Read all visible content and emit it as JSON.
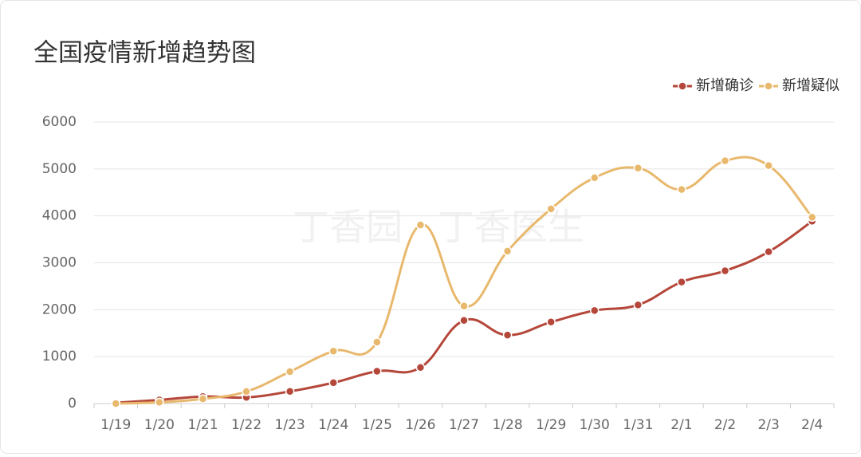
{
  "chart_data": {
    "type": "line",
    "title": "全国疫情新增趋势图",
    "watermark": "丁香园 · 丁香医生",
    "categories": [
      "1/19",
      "1/20",
      "1/21",
      "1/22",
      "1/23",
      "1/24",
      "1/25",
      "1/26",
      "1/27",
      "1/28",
      "1/29",
      "1/30",
      "1/31",
      "2/1",
      "2/2",
      "2/3",
      "2/4"
    ],
    "series": [
      {
        "name": "新增确诊",
        "color": "#b5473a",
        "values": [
          17,
          77,
          149,
          131,
          259,
          444,
          688,
          769,
          1771,
          1459,
          1737,
          1982,
          2102,
          2590,
          2829,
          3235,
          3887
        ]
      },
      {
        "name": "新增疑似",
        "color": "#e8b86d",
        "values": [
          0,
          27,
          100,
          257,
          680,
          1118,
          1309,
          3806,
          2077,
          3248,
          4148,
          4812,
          5019,
          4562,
          5173,
          5072,
          3971
        ]
      }
    ],
    "ylim": [
      0,
      6000
    ],
    "yticks": [
      0,
      1000,
      2000,
      3000,
      4000,
      5000,
      6000
    ],
    "grid": true,
    "legend": "top-right"
  }
}
